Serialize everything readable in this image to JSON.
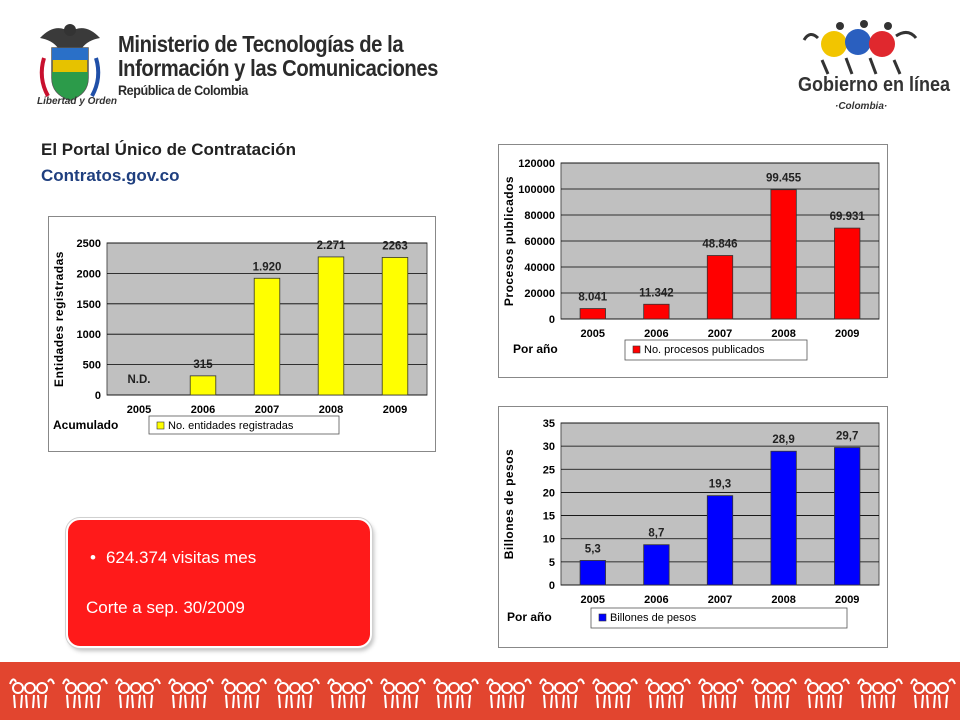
{
  "header": {
    "ministry_line1": "Ministerio de Tecnologías de la",
    "ministry_line2": "Información y las Comunicaciones",
    "ministry_line3": "República de Colombia",
    "escudo_caption": "Libertad y Orden",
    "gel_title": "Gobierno en línea",
    "gel_sub": "·Colombia·"
  },
  "titles": {
    "main": "El Portal Único de Contratación",
    "sub": "Contratos.gov.co"
  },
  "callout": {
    "bullet": "624.374 visitas mes",
    "note": "Corte a sep. 30/2009"
  },
  "colors": {
    "yellow": "#ffff00",
    "red": "#ff0000",
    "blue": "#0000ff",
    "plot_bg": "#c0c0c0",
    "callout": "#ff1a1a",
    "footer": "#e2452f"
  },
  "chart_data": [
    {
      "type": "bar",
      "categories": [
        "2005",
        "2006",
        "2007",
        "2008",
        "2009"
      ],
      "values": [
        null,
        315,
        1920,
        2271,
        2263
      ],
      "labels": [
        "N.D.",
        "315",
        "1.920",
        "2.271",
        "2263"
      ],
      "ylabel": "Entidades registradas",
      "xlabel": "Acumulado",
      "yticks": [
        "2500",
        "2000",
        "1500",
        "1000",
        "500",
        "0"
      ],
      "ylim": [
        0,
        2500
      ],
      "legend": "No. entidades registradas",
      "legend_position": "bottom",
      "color": "#ffff00"
    },
    {
      "type": "bar",
      "categories": [
        "2005",
        "2006",
        "2007",
        "2008",
        "2009"
      ],
      "values": [
        8041,
        11342,
        48846,
        99455,
        69931
      ],
      "labels": [
        "8.041",
        "11.342",
        "48.846",
        "99.455",
        "69.931"
      ],
      "ylabel": "Procesos publicados",
      "xlabel": "Por año",
      "yticks": [
        "120000",
        "100000",
        "80000",
        "60000",
        "40000",
        "20000",
        "0"
      ],
      "ylim": [
        0,
        120000
      ],
      "legend": "No. procesos publicados",
      "legend_position": "bottom",
      "color": "#ff0000"
    },
    {
      "type": "bar",
      "categories": [
        "2005",
        "2006",
        "2007",
        "2008",
        "2009"
      ],
      "values": [
        5.3,
        8.7,
        19.3,
        28.9,
        29.7
      ],
      "labels": [
        "5,3",
        "8,7",
        "19,3",
        "28,9",
        "29,7"
      ],
      "ylabel": "Billones de pesos",
      "xlabel": "Por año",
      "yticks": [
        "35",
        "30",
        "25",
        "20",
        "15",
        "10",
        "5",
        "0"
      ],
      "ylim": [
        0,
        35
      ],
      "legend": "Billones de pesos",
      "legend_position": "bottom",
      "color": "#0000ff"
    }
  ]
}
